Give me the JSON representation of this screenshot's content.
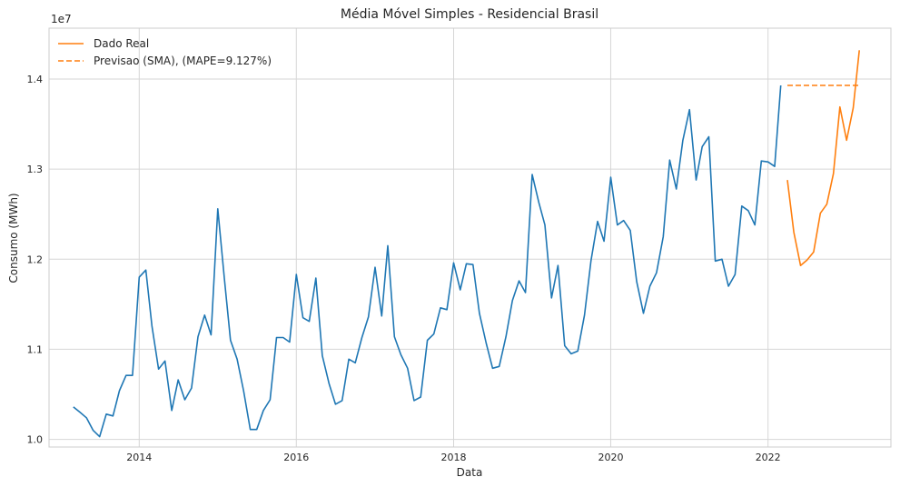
{
  "chart_data": {
    "type": "line",
    "title": "Média Móvel Simples - Residencial Brasil",
    "xlabel": "Data",
    "ylabel": "Consumo (MWh)",
    "y_offset_label": "1e7",
    "x_ticks": [
      "2014",
      "2016",
      "2018",
      "2020",
      "2022"
    ],
    "y_ticks": [
      "1.0",
      "1.1",
      "1.2",
      "1.3",
      "1.4"
    ],
    "y_tick_values": [
      1.0,
      1.1,
      1.2,
      1.3,
      1.4
    ],
    "xlim": [
      "2012-11-08",
      "2023-07-26"
    ],
    "ylim": [
      0.9915,
      1.4565
    ],
    "y_scale": "x1e7",
    "grid": true,
    "legend_position": "top-left",
    "colors": {
      "history": "#1f77b4",
      "real": "#ff7f0e",
      "forecast": "#ff7f0e"
    },
    "history": {
      "x": [
        "2013-03-01",
        "2013-04-01",
        "2013-05-01",
        "2013-06-01",
        "2013-07-01",
        "2013-08-01",
        "2013-09-01",
        "2013-10-01",
        "2013-11-01",
        "2013-12-01",
        "2014-01-01",
        "2014-02-01",
        "2014-03-01",
        "2014-04-01",
        "2014-05-01",
        "2014-06-01",
        "2014-07-01",
        "2014-08-01",
        "2014-09-01",
        "2014-10-01",
        "2014-11-01",
        "2014-12-01",
        "2015-01-01",
        "2015-02-01",
        "2015-03-01",
        "2015-04-01",
        "2015-05-01",
        "2015-06-01",
        "2015-07-01",
        "2015-08-01",
        "2015-09-01",
        "2015-10-01",
        "2015-11-01",
        "2015-12-01",
        "2016-01-01",
        "2016-02-01",
        "2016-03-01",
        "2016-04-01",
        "2016-05-01",
        "2016-06-01",
        "2016-07-01",
        "2016-08-01",
        "2016-09-01",
        "2016-10-01",
        "2016-11-01",
        "2016-12-01",
        "2017-01-01",
        "2017-02-01",
        "2017-03-01",
        "2017-04-01",
        "2017-05-01",
        "2017-06-01",
        "2017-07-01",
        "2017-08-01",
        "2017-09-01",
        "2017-10-01",
        "2017-11-01",
        "2017-12-01",
        "2018-01-01",
        "2018-02-01",
        "2018-03-01",
        "2018-04-01",
        "2018-05-01",
        "2018-06-01",
        "2018-07-01",
        "2018-08-01",
        "2018-09-01",
        "2018-10-01",
        "2018-11-01",
        "2018-12-01",
        "2019-01-01",
        "2019-02-01",
        "2019-03-01",
        "2019-04-01",
        "2019-05-01",
        "2019-06-01",
        "2019-07-01",
        "2019-08-01",
        "2019-09-01",
        "2019-10-01",
        "2019-11-01",
        "2019-12-01",
        "2020-01-01",
        "2020-02-01",
        "2020-03-01",
        "2020-04-01",
        "2020-05-01",
        "2020-06-01",
        "2020-07-01",
        "2020-08-01",
        "2020-09-01",
        "2020-10-01",
        "2020-11-01",
        "2020-12-01",
        "2021-01-01",
        "2021-02-01",
        "2021-03-01",
        "2021-04-01",
        "2021-05-01",
        "2021-06-01",
        "2021-07-01",
        "2021-08-01",
        "2021-09-01",
        "2021-10-01",
        "2021-11-01",
        "2021-12-01",
        "2022-01-01",
        "2022-02-01",
        "2022-03-01"
      ],
      "y": [
        1.036,
        1.03,
        1.024,
        1.01,
        1.003,
        1.028,
        1.026,
        1.054,
        1.071,
        1.071,
        1.18,
        1.188,
        1.126,
        1.078,
        1.087,
        1.032,
        1.066,
        1.044,
        1.057,
        1.114,
        1.138,
        1.116,
        1.256,
        1.178,
        1.11,
        1.089,
        1.054,
        1.011,
        1.011,
        1.032,
        1.044,
        1.113,
        1.113,
        1.108,
        1.183,
        1.135,
        1.131,
        1.179,
        1.093,
        1.062,
        1.039,
        1.043,
        1.089,
        1.085,
        1.113,
        1.136,
        1.191,
        1.137,
        1.215,
        1.114,
        1.094,
        1.079,
        1.043,
        1.047,
        1.11,
        1.117,
        1.146,
        1.144,
        1.196,
        1.166,
        1.195,
        1.194,
        1.14,
        1.107,
        1.079,
        1.081,
        1.114,
        1.154,
        1.176,
        1.163,
        1.294,
        1.263,
        1.238,
        1.157,
        1.193,
        1.104,
        1.095,
        1.098,
        1.138,
        1.198,
        1.242,
        1.22,
        1.291,
        1.238,
        1.243,
        1.232,
        1.175,
        1.14,
        1.17,
        1.185,
        1.225,
        1.31,
        1.278,
        1.332,
        1.366,
        1.288,
        1.325,
        1.336,
        1.198,
        1.2,
        1.17,
        1.183,
        1.259,
        1.254,
        1.238,
        1.309,
        1.308,
        1.303,
        1.393
      ]
    },
    "series": [
      {
        "name": "Dado Real",
        "style": "solid",
        "x": [
          "2022-04-01",
          "2022-05-01",
          "2022-06-01",
          "2022-07-01",
          "2022-08-01",
          "2022-09-01",
          "2022-10-01",
          "2022-11-01",
          "2022-12-01",
          "2023-01-01",
          "2023-02-01",
          "2023-03-01"
        ],
        "y": [
          1.288,
          1.23,
          1.193,
          1.199,
          1.208,
          1.251,
          1.261,
          1.295,
          1.369,
          1.332,
          1.368,
          1.432
        ]
      },
      {
        "name": "Previsao (SMA), (MAPE=9.127%)",
        "style": "dashed",
        "x": [
          "2022-04-01",
          "2022-05-01",
          "2022-06-01",
          "2022-07-01",
          "2022-08-01",
          "2022-09-01",
          "2022-10-01",
          "2022-11-01",
          "2022-12-01",
          "2023-01-01",
          "2023-02-01",
          "2023-03-01"
        ],
        "y": [
          1.393,
          1.393,
          1.393,
          1.393,
          1.393,
          1.393,
          1.393,
          1.393,
          1.393,
          1.393,
          1.393,
          1.393
        ]
      }
    ]
  }
}
